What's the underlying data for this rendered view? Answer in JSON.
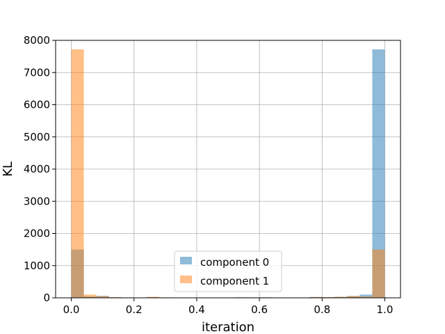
{
  "chart_data": {
    "type": "bar",
    "xlabel": "iteration",
    "ylabel": "KL",
    "xlim": [
      -0.05,
      1.05
    ],
    "ylim": [
      0,
      8000
    ],
    "xticks": [
      0.0,
      0.2,
      0.4,
      0.6,
      0.8,
      1.0
    ],
    "xtick_labels": [
      "0.0",
      "0.2",
      "0.4",
      "0.6",
      "0.8",
      "1.0"
    ],
    "yticks": [
      0,
      1000,
      2000,
      3000,
      4000,
      5000,
      6000,
      7000,
      8000
    ],
    "ytick_labels": [
      "0",
      "1000",
      "2000",
      "3000",
      "4000",
      "5000",
      "6000",
      "7000",
      "8000"
    ],
    "grid": true,
    "legend_position": "lower-center",
    "bin_width": 0.04,
    "bin_starts": [
      0.0,
      0.04,
      0.08,
      0.12,
      0.16,
      0.2,
      0.24,
      0.28,
      0.32,
      0.36,
      0.4,
      0.44,
      0.48,
      0.52,
      0.56,
      0.6,
      0.64,
      0.68,
      0.72,
      0.76,
      0.8,
      0.84,
      0.88,
      0.92,
      0.96
    ],
    "series": [
      {
        "name": "component 0",
        "color": "#1f77b4",
        "opacity": 0.5,
        "values": [
          1500,
          40,
          60,
          15,
          10,
          10,
          20,
          10,
          10,
          10,
          10,
          10,
          10,
          15,
          15,
          15,
          10,
          10,
          10,
          25,
          20,
          30,
          55,
          100,
          7720
        ]
      },
      {
        "name": "component 1",
        "color": "#ff7f0e",
        "opacity": 0.5,
        "values": [
          7720,
          100,
          50,
          20,
          10,
          10,
          30,
          15,
          10,
          10,
          10,
          10,
          10,
          15,
          10,
          15,
          10,
          10,
          10,
          25,
          20,
          30,
          55,
          40,
          1500
        ]
      }
    ]
  }
}
